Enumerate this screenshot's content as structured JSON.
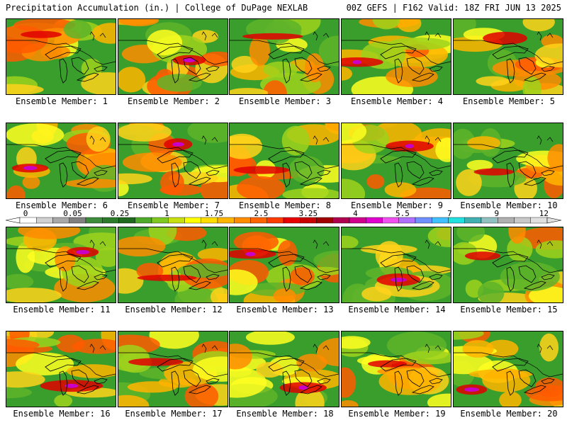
{
  "header": {
    "left": "Precipitation Accumulation (in.) | College of DuPage NEXLAB",
    "right": "00Z GEFS | F162 Valid: 18Z FRI JUN 13 2025"
  },
  "colorbar": {
    "tick_labels": [
      "0",
      "0.05",
      "0.25",
      "1",
      "1.75",
      "2.5",
      "3.25",
      "4",
      "5.5",
      "7",
      "9",
      "12"
    ],
    "colors": [
      "#ffffff",
      "#d0d0d0",
      "#a8a8a8",
      "#808080",
      "#3c8c3c",
      "#2a7a2a",
      "#1f6a1f",
      "#4faa2a",
      "#7fc820",
      "#c8e010",
      "#ffff00",
      "#ffdd00",
      "#ffb400",
      "#ff8c00",
      "#ff6400",
      "#ff3c00",
      "#e60000",
      "#c80000",
      "#a00000",
      "#b00050",
      "#d0008c",
      "#e000d0",
      "#f050f0",
      "#b070ff",
      "#7090ff",
      "#40c0ff",
      "#20e0e0",
      "#40b0b0",
      "#90c0c0",
      "#b0b0b0",
      "#c8c8c8",
      "#e0e0e0"
    ]
  },
  "panels": [
    {
      "label": "Ensemble Member: 1"
    },
    {
      "label": "Ensemble Member: 2"
    },
    {
      "label": "Ensemble Member: 3"
    },
    {
      "label": "Ensemble Member: 4"
    },
    {
      "label": "Ensemble Member: 5"
    },
    {
      "label": "Ensemble Member: 6"
    },
    {
      "label": "Ensemble Member: 7"
    },
    {
      "label": "Ensemble Member: 8"
    },
    {
      "label": "Ensemble Member: 9"
    },
    {
      "label": "Ensemble Member: 10"
    },
    {
      "label": "Ensemble Member: 11"
    },
    {
      "label": "Ensemble Member: 12"
    },
    {
      "label": "Ensemble Member: 13"
    },
    {
      "label": "Ensemble Member: 14"
    },
    {
      "label": "Ensemble Member: 15"
    },
    {
      "label": "Ensemble Member: 16"
    },
    {
      "label": "Ensemble Member: 17"
    },
    {
      "label": "Ensemble Member: 18"
    },
    {
      "label": "Ensemble Member: 19"
    },
    {
      "label": "Ensemble Member: 20"
    }
  ]
}
